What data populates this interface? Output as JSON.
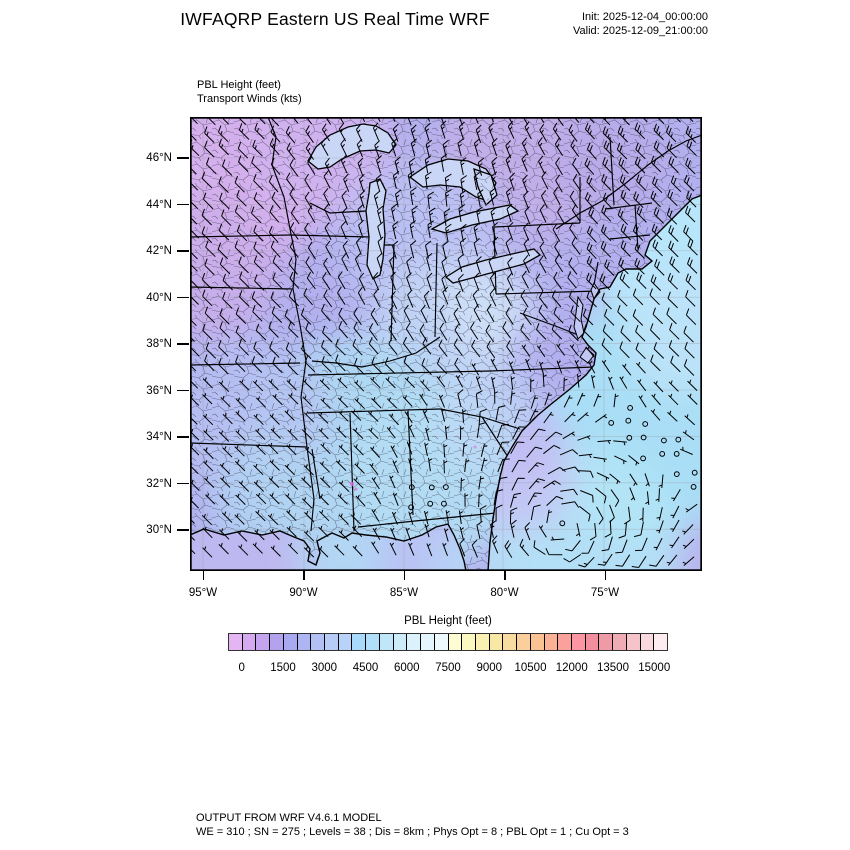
{
  "header": {
    "title": "IWFAQRP Eastern US Real Time WRF",
    "init": "Init: 2025-12-04_00:00:00",
    "valid": "Valid: 2025-12-09_21:00:00"
  },
  "field_labels": {
    "line1": "PBL Height   (feet)",
    "line2": "Transport Winds   (kts)"
  },
  "axes": {
    "lat_ticks": [
      "46°N",
      "44°N",
      "42°N",
      "40°N",
      "38°N",
      "36°N",
      "34°N",
      "32°N",
      "30°N"
    ],
    "lon_ticks": [
      "95°W",
      "90°W",
      "85°W",
      "80°W",
      "75°W"
    ]
  },
  "colorbar": {
    "title": "PBL Height  (feet)",
    "tick_labels": [
      "0",
      "1500",
      "3000",
      "4500",
      "6000",
      "7500",
      "9000",
      "10500",
      "12000",
      "13500",
      "15000"
    ],
    "unit_feet_per_cell": 500,
    "colors": [
      "#e3b6f3",
      "#d5aaf1",
      "#c4a4ef",
      "#b3a3ef",
      "#a9a9f1",
      "#adb5f3",
      "#b2c0f5",
      "#b7cbf7",
      "#b7d3f9",
      "#aadafb",
      "#b0e0f9",
      "#bfe6f9",
      "#cdecfa",
      "#dbf1fc",
      "#e5f5fd",
      "#eef9fe",
      "#fdfcd2",
      "#fbf8c0",
      "#faf0b2",
      "#f9e7a6",
      "#f9dca0",
      "#facf9b",
      "#fbc294",
      "#fbb194",
      "#fba19c",
      "#fb96a2",
      "#f18f9e",
      "#ee9ba6",
      "#f0acb4",
      "#f5c3ca",
      "#f9d9de",
      "#fdedf0"
    ]
  },
  "footer": {
    "line1": "OUTPUT FROM WRF V4.6.1 MODEL",
    "line2": "WE = 310 ; SN = 275 ; Levels = 38 ; Dis = 8km ; Phys Opt = 8 ; PBL Opt = 1 ; Cu Opt = 3"
  },
  "map_colors": {
    "land_base": "#b2b0ee",
    "nw_violet": "#d6b0ec",
    "north_lavender": "#c4aee8",
    "pale_blue_center": "#c6d8f6",
    "south_cyan": "#aed8f2",
    "ocean_base": "#b9b4ee",
    "ocean_cyan": "#a8e0f6",
    "ne_ocean_cyan": "#b6e8fa",
    "lake_fill": "#c9d6f6",
    "hotspot_magenta": "#d36ad8",
    "outline_black": "#000000",
    "graticule_gray": "#9a9aa6"
  }
}
